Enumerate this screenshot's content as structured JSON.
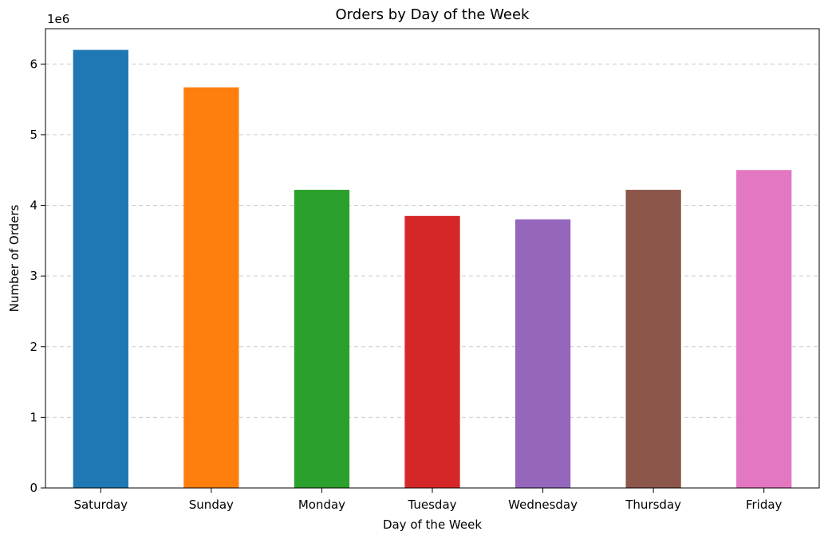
{
  "chart_data": {
    "type": "bar",
    "title": "Orders by Day of the Week",
    "xlabel": "Day of the Week",
    "ylabel": "Number of Orders",
    "offset_label": "1e6",
    "categories": [
      "Saturday",
      "Sunday",
      "Monday",
      "Tuesday",
      "Wednesday",
      "Thursday",
      "Friday"
    ],
    "values": [
      6200000,
      5670000,
      4220000,
      3850000,
      3800000,
      4220000,
      4500000
    ],
    "colors": [
      "#1f77b4",
      "#ff7f0e",
      "#2ca02c",
      "#d62728",
      "#9467bd",
      "#8c564b",
      "#e377c2"
    ],
    "yticks": [
      0,
      1,
      2,
      3,
      4,
      5,
      6
    ],
    "ytick_labels": [
      "0",
      "1",
      "2",
      "3",
      "4",
      "5",
      "6"
    ],
    "ylim": [
      0,
      6500000
    ],
    "grid": "y-dashed",
    "legend": "none"
  }
}
